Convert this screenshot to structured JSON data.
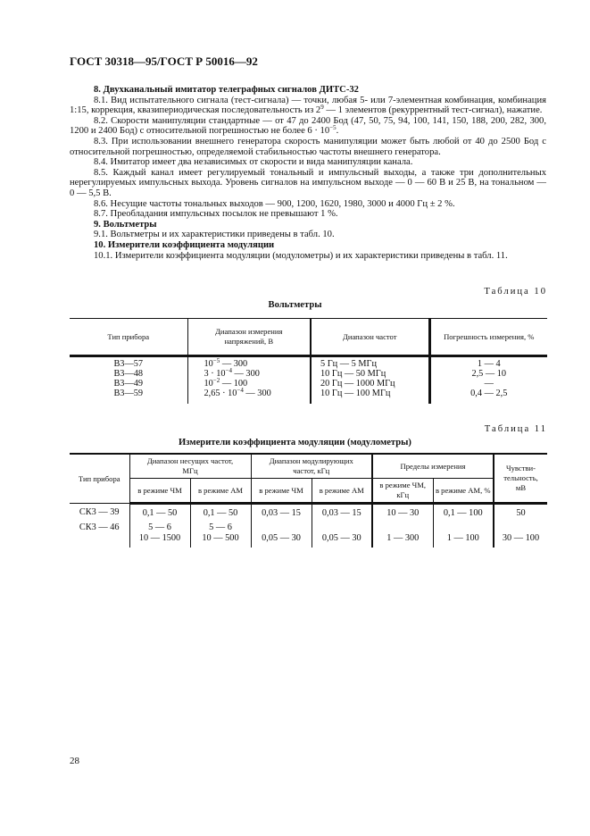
{
  "header": "ГОСТ 30318—95/ГОСТ Р 50016—92",
  "paragraphs": [
    {
      "bold": true,
      "text": "8. Двухканальный имитатор телеграфных сигналов ДИТС-32"
    },
    {
      "bold": false,
      "text": "8.1. Вид испытательного сигнала (тест-сигнала) — точки, любая 5- или 7-элементная комбинация, комбинация 1:15, коррекция, квазипериодическая последовательность из 2⁹ — 1 элементов (рекуррентный тест-сигнал), нажатие."
    },
    {
      "bold": false,
      "text": "8.2. Скорости манипуляции стандартные — от 47 до 2400 Бод (47, 50, 75, 94, 100, 141, 150, 188, 200, 282, 300, 1200 и 2400 Бод) с относительной погрешностью не более 6 · 10⁻⁵."
    },
    {
      "bold": false,
      "text": "8.3. При использовании внешнего генератора скорость манипуляции может быть любой от 40 до 2500 Бод с относительной погрешностью, определяемой стабильностью частоты внешнего генератора."
    },
    {
      "bold": false,
      "text": "8.4. Имитатор имеет два независимых от скорости и вида манипуляции канала."
    },
    {
      "bold": false,
      "text": "8.5. Каждый канал имеет регулируемый тональный и импульсный выходы, а также три дополнительных нерегулируемых импульсных выхода. Уровень сигналов на импульсном выходе — 0 — 60 В и 25 В, на тональном — 0 — 5,5 В."
    },
    {
      "bold": false,
      "text": "8.6. Несущие частоты тональных выходов — 900, 1200, 1620, 1980, 3000 и 4000 Гц ± 2 %."
    },
    {
      "bold": false,
      "text": "8.7. Преобладания импульсных посылок не превышают 1 %."
    },
    {
      "bold": true,
      "text": "9. Вольтметры"
    },
    {
      "bold": false,
      "text": "9.1. Вольтметры и их характеристики приведены в табл. 10."
    },
    {
      "bold": true,
      "text": "10. Измерители коэффициента модуляции"
    },
    {
      "bold": false,
      "text": "10.1. Измерители коэффициента модуляции (модулометры) и их характеристики приведены в табл. 11."
    }
  ],
  "table10": {
    "caption": "Таблица 10",
    "title": "Вольтметры",
    "headers": [
      "Тип прибора",
      "Диапазон измерения напряжений, В",
      "Диапазон частот",
      "Погрешность измерения, %"
    ],
    "col_type": [
      "В3—57",
      "В3—48",
      "В3—49",
      "В3—59"
    ],
    "col_voltage": [
      "10⁻⁵ — 300",
      "3 · 10⁻⁴ — 300",
      "10⁻² — 100",
      "2,65 · 10⁻⁴ — 300"
    ],
    "col_freq": [
      "5 Гц — 5 МГц",
      "10 Гц — 50 МГц",
      "20 Гц — 1000 МГц",
      "10 Гц — 100 МГц"
    ],
    "col_error": [
      "1 — 4",
      "2,5 — 10",
      "—",
      "0,4 — 2,5"
    ]
  },
  "table11": {
    "caption": "Таблица 11",
    "title": "Измерители коэффициента модуляции (модулометры)",
    "headers": {
      "type": "Тип прибора",
      "carrier": "Диапазон несущих частот, МГц",
      "modulating": "Диапазон модулирующих частот, кГц",
      "limits": "Пределы измерения",
      "sensitivity": "Чувстви-тельность, мВ",
      "fm": "в режиме ЧМ",
      "am": "в режиме АМ",
      "fm_khz": "в режиме ЧМ, кГц",
      "am_pct": "в режиме АМ, %"
    },
    "rows": [
      {
        "type": "СК3 — 39",
        "carrier_fm": "0,1 — 50",
        "carrier_am": "0,1 — 50",
        "mod_fm": "0,03 — 15",
        "mod_am": "0,03 — 15",
        "lim_fm": "10 — 30",
        "lim_am": "0,1 — 100",
        "sens": "50"
      },
      {
        "type": "СК3 — 46",
        "carrier_fm": "5 — 6",
        "carrier_am": "5 — 6",
        "mod_fm": "",
        "mod_am": "",
        "lim_fm": "",
        "lim_am": "",
        "sens": ""
      },
      {
        "type": "",
        "carrier_fm": "10 — 1500",
        "carrier_am": "10 — 500",
        "mod_fm": "0,05 — 30",
        "mod_am": "0,05 — 30",
        "lim_fm": "1 — 300",
        "lim_am": "1 — 100",
        "sens": "30 — 100"
      }
    ]
  },
  "page_number": "28"
}
